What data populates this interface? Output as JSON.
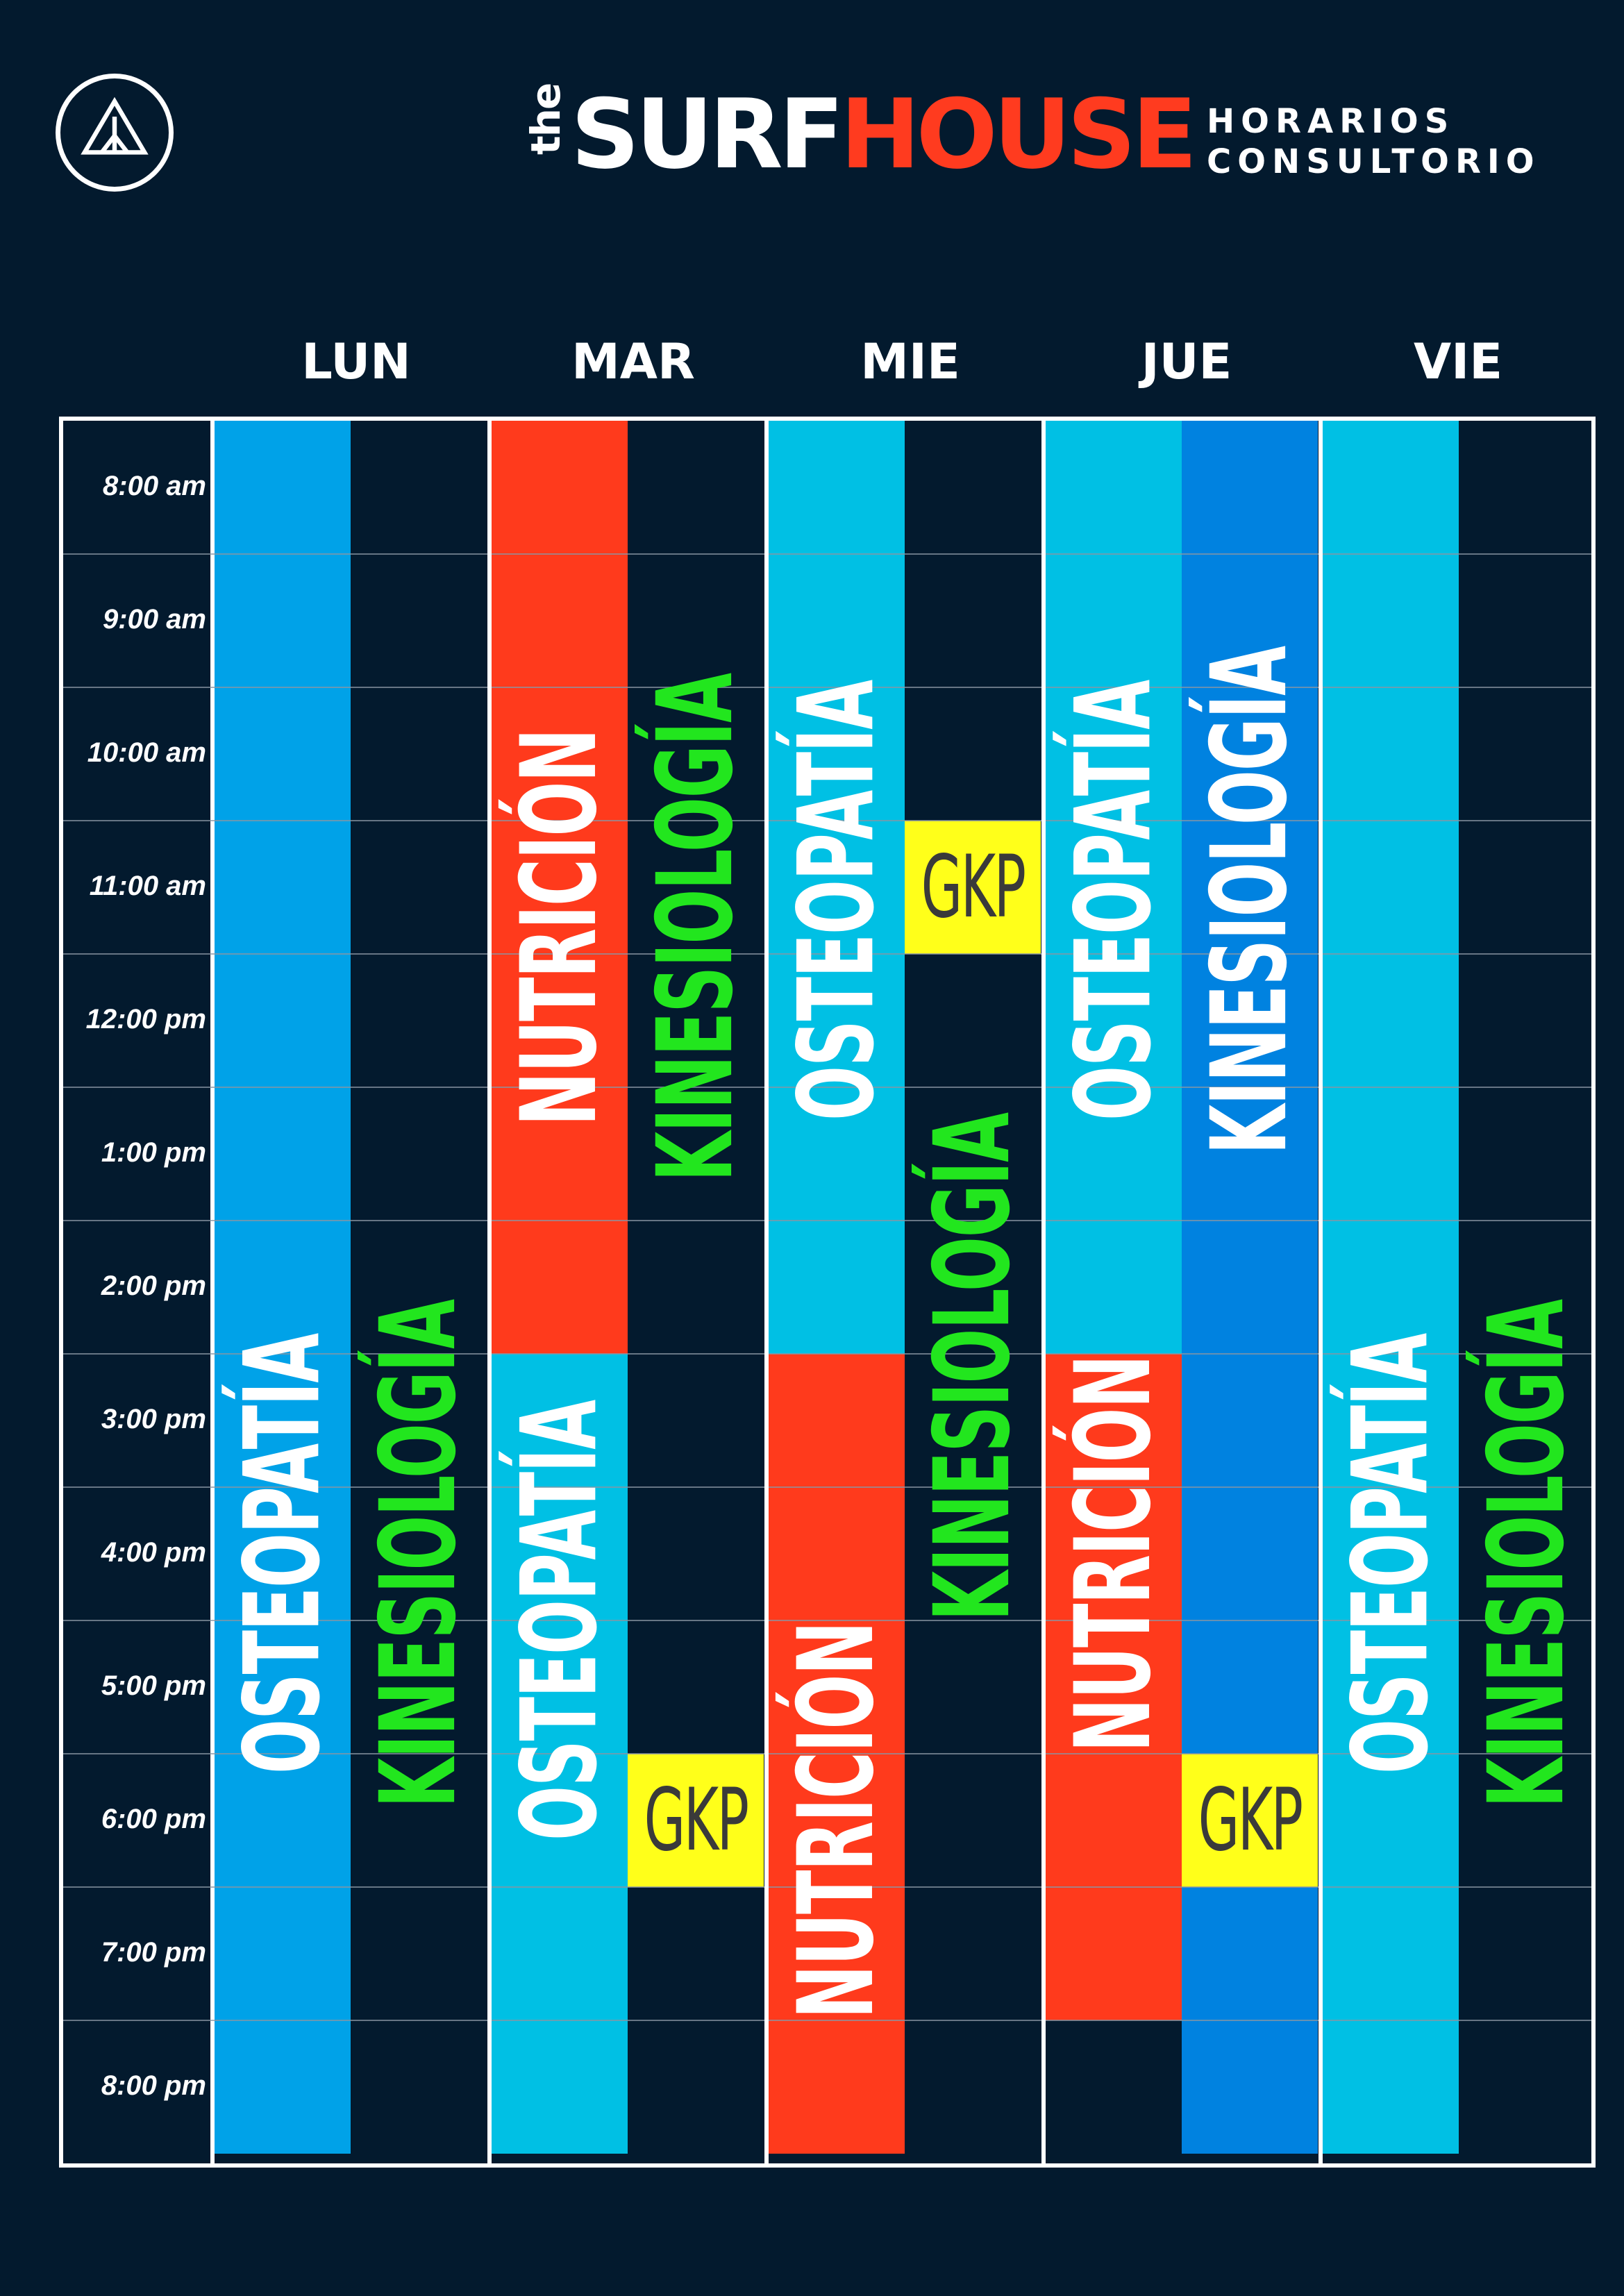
{
  "header": {
    "brand_the": "the",
    "brand_surf": "SURF",
    "brand_house": "HOUSE",
    "subtitle_line1": "HORARIOS",
    "subtitle_line2": "CONSULTORIO"
  },
  "days": [
    "LUN",
    "MAR",
    "MIE",
    "JUE",
    "VIE"
  ],
  "times": [
    "8:00 am",
    "9:00 am",
    "10:00 am",
    "11:00 am",
    "12:00 pm",
    "1:00 pm",
    "2:00 pm",
    "3:00 pm",
    "4:00 pm",
    "5:00 pm",
    "6:00 pm",
    "7:00 pm",
    "8:00 pm"
  ],
  "colors": {
    "background": "#031a2e",
    "osteopatia": "#00c0e4",
    "osteopatia_lun": "#00a2e8",
    "kinesiologia_jue": "#0082e0",
    "nutricion": "#ff3a1c",
    "gkp": "#ffff1a",
    "kinesiologia_text": "#22e61e"
  },
  "labels": {
    "osteopatia": "OSTEOPATÍA",
    "kinesiologia": "KINESIOLOGÍA",
    "nutricion": "NUTRICIÓN",
    "gkp": "GKP"
  },
  "schedule": [
    {
      "day": "LUN",
      "lane": 0,
      "start": "8:00 am",
      "end": "9:00 pm",
      "service": "OSTEOPATÍA",
      "color": "#00a2e8"
    },
    {
      "day": "LUN",
      "lane": 1,
      "start": "8:00 am",
      "end": "9:00 pm",
      "service": "KINESIOLOGÍA",
      "color": "#031a2e"
    },
    {
      "day": "MAR",
      "lane": 0,
      "start": "8:00 am",
      "end": "3:00 pm",
      "service": "NUTRICIÓN",
      "color": "#ff3a1c"
    },
    {
      "day": "MAR",
      "lane": 1,
      "start": "8:00 am",
      "end": "3:00 pm",
      "service": "KINESIOLOGÍA",
      "color": "#031a2e"
    },
    {
      "day": "MAR",
      "lane": 0,
      "start": "3:00 pm",
      "end": "9:00 pm",
      "service": "OSTEOPATÍA",
      "color": "#00c0e4"
    },
    {
      "day": "MAR",
      "lane": 1,
      "start": "6:00 pm",
      "end": "7:00 pm",
      "service": "GKP",
      "color": "#ffff1a"
    },
    {
      "day": "MIE",
      "lane": 0,
      "start": "8:00 am",
      "end": "3:00 pm",
      "service": "OSTEOPATÍA",
      "color": "#00c0e4"
    },
    {
      "day": "MIE",
      "lane": 1,
      "start": "11:00 am",
      "end": "12:00 pm",
      "service": "GKP",
      "color": "#ffff1a"
    },
    {
      "day": "MIE",
      "lane": 1,
      "start": "1:00 pm",
      "end": "4:00 pm",
      "service": "KINESIOLOGÍA",
      "color": "#031a2e"
    },
    {
      "day": "MIE",
      "lane": 0,
      "start": "3:00 pm",
      "end": "9:00 pm",
      "service": "NUTRICIÓN",
      "color": "#ff3a1c"
    },
    {
      "day": "JUE",
      "lane": 0,
      "start": "8:00 am",
      "end": "3:00 pm",
      "service": "OSTEOPATÍA",
      "color": "#00c0e4"
    },
    {
      "day": "JUE",
      "lane": 1,
      "start": "8:00 am",
      "end": "9:00 pm",
      "service": "KINESIOLOGÍA",
      "color": "#0082e0"
    },
    {
      "day": "JUE",
      "lane": 0,
      "start": "3:00 pm",
      "end": "8:00 pm",
      "service": "NUTRICIÓN",
      "color": "#ff3a1c"
    },
    {
      "day": "JUE",
      "lane": 1,
      "start": "6:00 pm",
      "end": "7:00 pm",
      "service": "GKP",
      "color": "#ffff1a"
    },
    {
      "day": "VIE",
      "lane": 0,
      "start": "8:00 am",
      "end": "9:00 pm",
      "service": "OSTEOPATÍA",
      "color": "#00c0e4"
    },
    {
      "day": "VIE",
      "lane": 1,
      "start": "8:00 am",
      "end": "9:00 pm",
      "service": "KINESIOLOGÍA",
      "color": "#031a2e"
    }
  ]
}
